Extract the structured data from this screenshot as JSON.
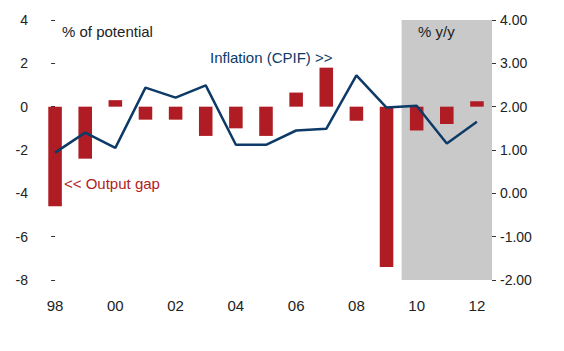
{
  "chart_data": {
    "type": "bar",
    "ylabel": "% of potential",
    "y2label": "% y/y",
    "categories": [
      "98",
      null,
      "00",
      null,
      "02",
      null,
      "04",
      null,
      "06",
      null,
      "08",
      null,
      "10",
      null,
      "12"
    ],
    "series": [
      {
        "name": "<< Output gap",
        "type": "bar",
        "color": "#b01c24",
        "values": [
          -4.6,
          -2.4,
          0.3,
          -0.6,
          -0.6,
          -1.35,
          -1.0,
          -1.35,
          0.65,
          1.8,
          -0.65,
          -7.4,
          -1.1,
          -0.8,
          0.25
        ]
      },
      {
        "name": "Inflation (CPIF) >>",
        "type": "line",
        "axis": "y2",
        "color": "#0d3a66",
        "marker": "none",
        "values": [
          0.94,
          1.4,
          1.05,
          2.44,
          2.21,
          2.49,
          1.12,
          1.12,
          1.45,
          1.49,
          2.72,
          1.98,
          2.02,
          1.15,
          1.65
        ]
      }
    ],
    "ylim": [
      -8,
      4
    ],
    "yticks": [
      -8,
      -6,
      -4,
      -2,
      0,
      2,
      4
    ],
    "y2lim": [
      -2,
      4
    ],
    "y2ticks": [
      {
        "value": -2,
        "label": "-2.00"
      },
      {
        "value": -1,
        "label": "-1.00"
      },
      {
        "value": 0,
        "label": "0.00"
      },
      {
        "value": 1,
        "label": "1.00"
      },
      {
        "value": 2,
        "label": "2.00"
      },
      {
        "value": 3,
        "label": "3.00"
      },
      {
        "value": 4,
        "label": "4.00"
      }
    ],
    "grid": false,
    "shaded_from": "10"
  }
}
